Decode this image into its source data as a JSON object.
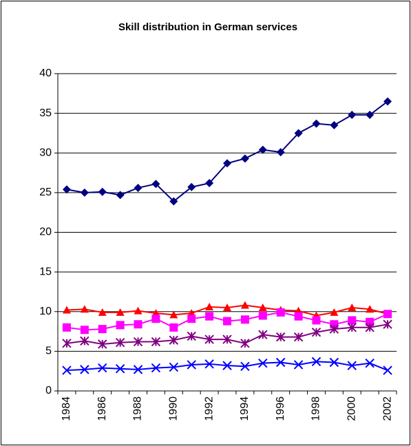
{
  "chart_data": {
    "type": "line",
    "title": "Skill distribution in German services",
    "categories": [
      "1984",
      null,
      "1986",
      null,
      "1988",
      null,
      "1990",
      null,
      "1992",
      null,
      "1994",
      null,
      "1996",
      null,
      "1998",
      null,
      "2000",
      null,
      "2002"
    ],
    "ylim": [
      0,
      40
    ],
    "yticks": [
      0,
      5,
      10,
      15,
      20,
      25,
      30,
      35,
      40
    ],
    "grid": true,
    "series": [
      {
        "color": "#000080",
        "marker": "diamond",
        "values": [
          25.4,
          25.0,
          25.1,
          24.7,
          25.6,
          26.1,
          23.9,
          25.7,
          26.2,
          28.7,
          29.3,
          30.4,
          30.1,
          32.5,
          33.7,
          33.5,
          34.8,
          34.8,
          36.5
        ]
      },
      {
        "color": "#ff0000",
        "marker": "triangle",
        "values": [
          10.2,
          10.3,
          9.9,
          9.9,
          10.1,
          9.8,
          9.6,
          9.8,
          10.6,
          10.5,
          10.8,
          10.5,
          10.2,
          10.1,
          9.5,
          9.9,
          10.5,
          10.3,
          9.7
        ]
      },
      {
        "color": "#ff00ff",
        "marker": "square",
        "values": [
          8.0,
          7.7,
          7.8,
          8.3,
          8.4,
          9.1,
          8.0,
          9.1,
          9.4,
          8.8,
          9.0,
          9.5,
          9.9,
          9.4,
          8.9,
          8.4,
          8.9,
          8.7,
          9.7
        ]
      },
      {
        "color": "#800080",
        "marker": "star",
        "values": [
          6.0,
          6.3,
          5.9,
          6.1,
          6.2,
          6.2,
          6.4,
          6.9,
          6.5,
          6.5,
          6.0,
          7.1,
          6.8,
          6.8,
          7.4,
          7.8,
          8.0,
          8.0,
          8.4
        ]
      },
      {
        "color": "#0000ff",
        "marker": "x",
        "values": [
          2.6,
          2.7,
          2.9,
          2.8,
          2.7,
          2.9,
          3.0,
          3.3,
          3.4,
          3.2,
          3.1,
          3.5,
          3.6,
          3.3,
          3.7,
          3.6,
          3.2,
          3.5,
          2.6
        ]
      }
    ]
  }
}
